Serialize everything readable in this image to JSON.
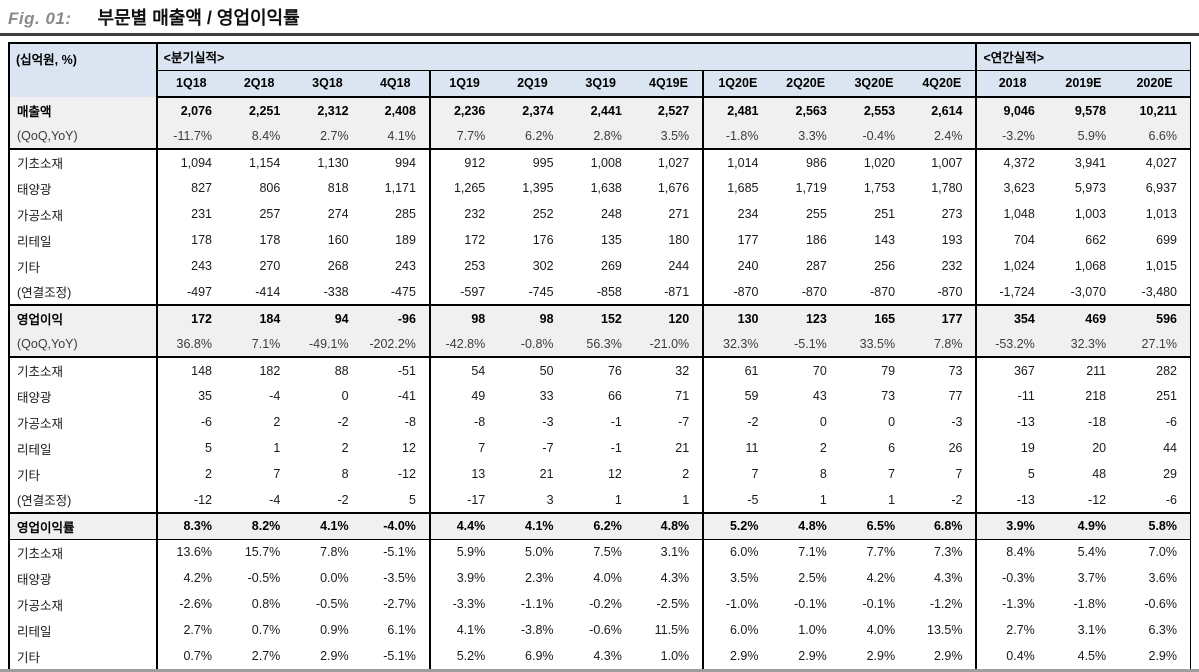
{
  "figure": {
    "label": "Fig. 01:",
    "title": "부문별 매출액 / 영업이익률"
  },
  "table": {
    "unit_label": "(십억원, %)",
    "group_headers": {
      "quarterly": "<분기실적>",
      "annual": "<연간실적>"
    },
    "columns": [
      "1Q18",
      "2Q18",
      "3Q18",
      "4Q18",
      "1Q19",
      "2Q19",
      "3Q19",
      "4Q19E",
      "1Q20E",
      "2Q20E",
      "3Q20E",
      "4Q20E",
      "2018",
      "2019E",
      "2020E"
    ],
    "rows": [
      {
        "label": "매출액",
        "style": "summary",
        "values": [
          "2,076",
          "2,251",
          "2,312",
          "2,408",
          "2,236",
          "2,374",
          "2,441",
          "2,527",
          "2,481",
          "2,563",
          "2,553",
          "2,614",
          "9,046",
          "9,578",
          "10,211"
        ]
      },
      {
        "label": "(QoQ,YoY)",
        "style": "subrow block-end",
        "values": [
          "-11.7%",
          "8.4%",
          "2.7%",
          "4.1%",
          "7.7%",
          "6.2%",
          "2.8%",
          "3.5%",
          "-1.8%",
          "3.3%",
          "-0.4%",
          "2.4%",
          "-3.2%",
          "5.9%",
          "6.6%"
        ]
      },
      {
        "label": "기초소재",
        "style": "plain",
        "values": [
          "1,094",
          "1,154",
          "1,130",
          "994",
          "912",
          "995",
          "1,008",
          "1,027",
          "1,014",
          "986",
          "1,020",
          "1,007",
          "4,372",
          "3,941",
          "4,027"
        ]
      },
      {
        "label": "태양광",
        "style": "plain",
        "values": [
          "827",
          "806",
          "818",
          "1,171",
          "1,265",
          "1,395",
          "1,638",
          "1,676",
          "1,685",
          "1,719",
          "1,753",
          "1,780",
          "3,623",
          "5,973",
          "6,937"
        ]
      },
      {
        "label": "가공소재",
        "style": "plain",
        "values": [
          "231",
          "257",
          "274",
          "285",
          "232",
          "252",
          "248",
          "271",
          "234",
          "255",
          "251",
          "273",
          "1,048",
          "1,003",
          "1,013"
        ]
      },
      {
        "label": "리테일",
        "style": "plain",
        "values": [
          "178",
          "178",
          "160",
          "189",
          "172",
          "176",
          "135",
          "180",
          "177",
          "186",
          "143",
          "193",
          "704",
          "662",
          "699"
        ]
      },
      {
        "label": "기타",
        "style": "plain",
        "values": [
          "243",
          "270",
          "268",
          "243",
          "253",
          "302",
          "269",
          "244",
          "240",
          "287",
          "256",
          "232",
          "1,024",
          "1,068",
          "1,015"
        ]
      },
      {
        "label": "(연결조정)",
        "style": "plain block-end",
        "values": [
          "-497",
          "-414",
          "-338",
          "-475",
          "-597",
          "-745",
          "-858",
          "-871",
          "-870",
          "-870",
          "-870",
          "-870",
          "-1,724",
          "-3,070",
          "-3,480"
        ]
      },
      {
        "label": "영업이익",
        "style": "summary",
        "values": [
          "172",
          "184",
          "94",
          "-96",
          "98",
          "98",
          "152",
          "120",
          "130",
          "123",
          "165",
          "177",
          "354",
          "469",
          "596"
        ]
      },
      {
        "label": "(QoQ,YoY)",
        "style": "subrow block-end",
        "values": [
          "36.8%",
          "7.1%",
          "-49.1%",
          "-202.2%",
          "-42.8%",
          "-0.8%",
          "56.3%",
          "-21.0%",
          "32.3%",
          "-5.1%",
          "33.5%",
          "7.8%",
          "-53.2%",
          "32.3%",
          "27.1%"
        ]
      },
      {
        "label": "기초소재",
        "style": "plain",
        "values": [
          "148",
          "182",
          "88",
          "-51",
          "54",
          "50",
          "76",
          "32",
          "61",
          "70",
          "79",
          "73",
          "367",
          "211",
          "282"
        ]
      },
      {
        "label": "태양광",
        "style": "plain",
        "values": [
          "35",
          "-4",
          "0",
          "-41",
          "49",
          "33",
          "66",
          "71",
          "59",
          "43",
          "73",
          "77",
          "-11",
          "218",
          "251"
        ]
      },
      {
        "label": "가공소재",
        "style": "plain",
        "values": [
          "-6",
          "2",
          "-2",
          "-8",
          "-8",
          "-3",
          "-1",
          "-7",
          "-2",
          "0",
          "0",
          "-3",
          "-13",
          "-18",
          "-6"
        ]
      },
      {
        "label": "리테일",
        "style": "plain",
        "values": [
          "5",
          "1",
          "2",
          "12",
          "7",
          "-7",
          "-1",
          "21",
          "11",
          "2",
          "6",
          "26",
          "19",
          "20",
          "44"
        ]
      },
      {
        "label": "기타",
        "style": "plain",
        "values": [
          "2",
          "7",
          "8",
          "-12",
          "13",
          "21",
          "12",
          "2",
          "7",
          "8",
          "7",
          "7",
          "5",
          "48",
          "29"
        ]
      },
      {
        "label": "(연결조정)",
        "style": "plain block-end",
        "values": [
          "-12",
          "-4",
          "-2",
          "5",
          "-17",
          "3",
          "1",
          "1",
          "-5",
          "1",
          "1",
          "-2",
          "-13",
          "-12",
          "-6"
        ]
      },
      {
        "label": "영업이익률",
        "style": "summary thin-end",
        "values": [
          "8.3%",
          "8.2%",
          "4.1%",
          "-4.0%",
          "4.4%",
          "4.1%",
          "6.2%",
          "4.8%",
          "5.2%",
          "4.8%",
          "6.5%",
          "6.8%",
          "3.9%",
          "4.9%",
          "5.8%"
        ]
      },
      {
        "label": "기초소재",
        "style": "plain",
        "values": [
          "13.6%",
          "15.7%",
          "7.8%",
          "-5.1%",
          "5.9%",
          "5.0%",
          "7.5%",
          "3.1%",
          "6.0%",
          "7.1%",
          "7.7%",
          "7.3%",
          "8.4%",
          "5.4%",
          "7.0%"
        ]
      },
      {
        "label": "태양광",
        "style": "plain",
        "values": [
          "4.2%",
          "-0.5%",
          "0.0%",
          "-3.5%",
          "3.9%",
          "2.3%",
          "4.0%",
          "4.3%",
          "3.5%",
          "2.5%",
          "4.2%",
          "4.3%",
          "-0.3%",
          "3.7%",
          "3.6%"
        ]
      },
      {
        "label": "가공소재",
        "style": "plain",
        "values": [
          "-2.6%",
          "0.8%",
          "-0.5%",
          "-2.7%",
          "-3.3%",
          "-1.1%",
          "-0.2%",
          "-2.5%",
          "-1.0%",
          "-0.1%",
          "-0.1%",
          "-1.2%",
          "-1.3%",
          "-1.8%",
          "-0.6%"
        ]
      },
      {
        "label": "리테일",
        "style": "plain",
        "values": [
          "2.7%",
          "0.7%",
          "0.9%",
          "6.1%",
          "4.1%",
          "-3.8%",
          "-0.6%",
          "11.5%",
          "6.0%",
          "1.0%",
          "4.0%",
          "13.5%",
          "2.7%",
          "3.1%",
          "6.3%"
        ]
      },
      {
        "label": "기타",
        "style": "plain",
        "values": [
          "0.7%",
          "2.7%",
          "2.9%",
          "-5.1%",
          "5.2%",
          "6.9%",
          "4.3%",
          "1.0%",
          "2.9%",
          "2.9%",
          "2.9%",
          "2.9%",
          "0.4%",
          "4.5%",
          "2.9%"
        ]
      }
    ],
    "colors": {
      "header_bg": "#dae5f1",
      "summary_row_bg": "#f0f0f0",
      "title_rule": "#3f3f3f",
      "bottom_rule": "#9d9d9d",
      "border": "#000000"
    }
  }
}
